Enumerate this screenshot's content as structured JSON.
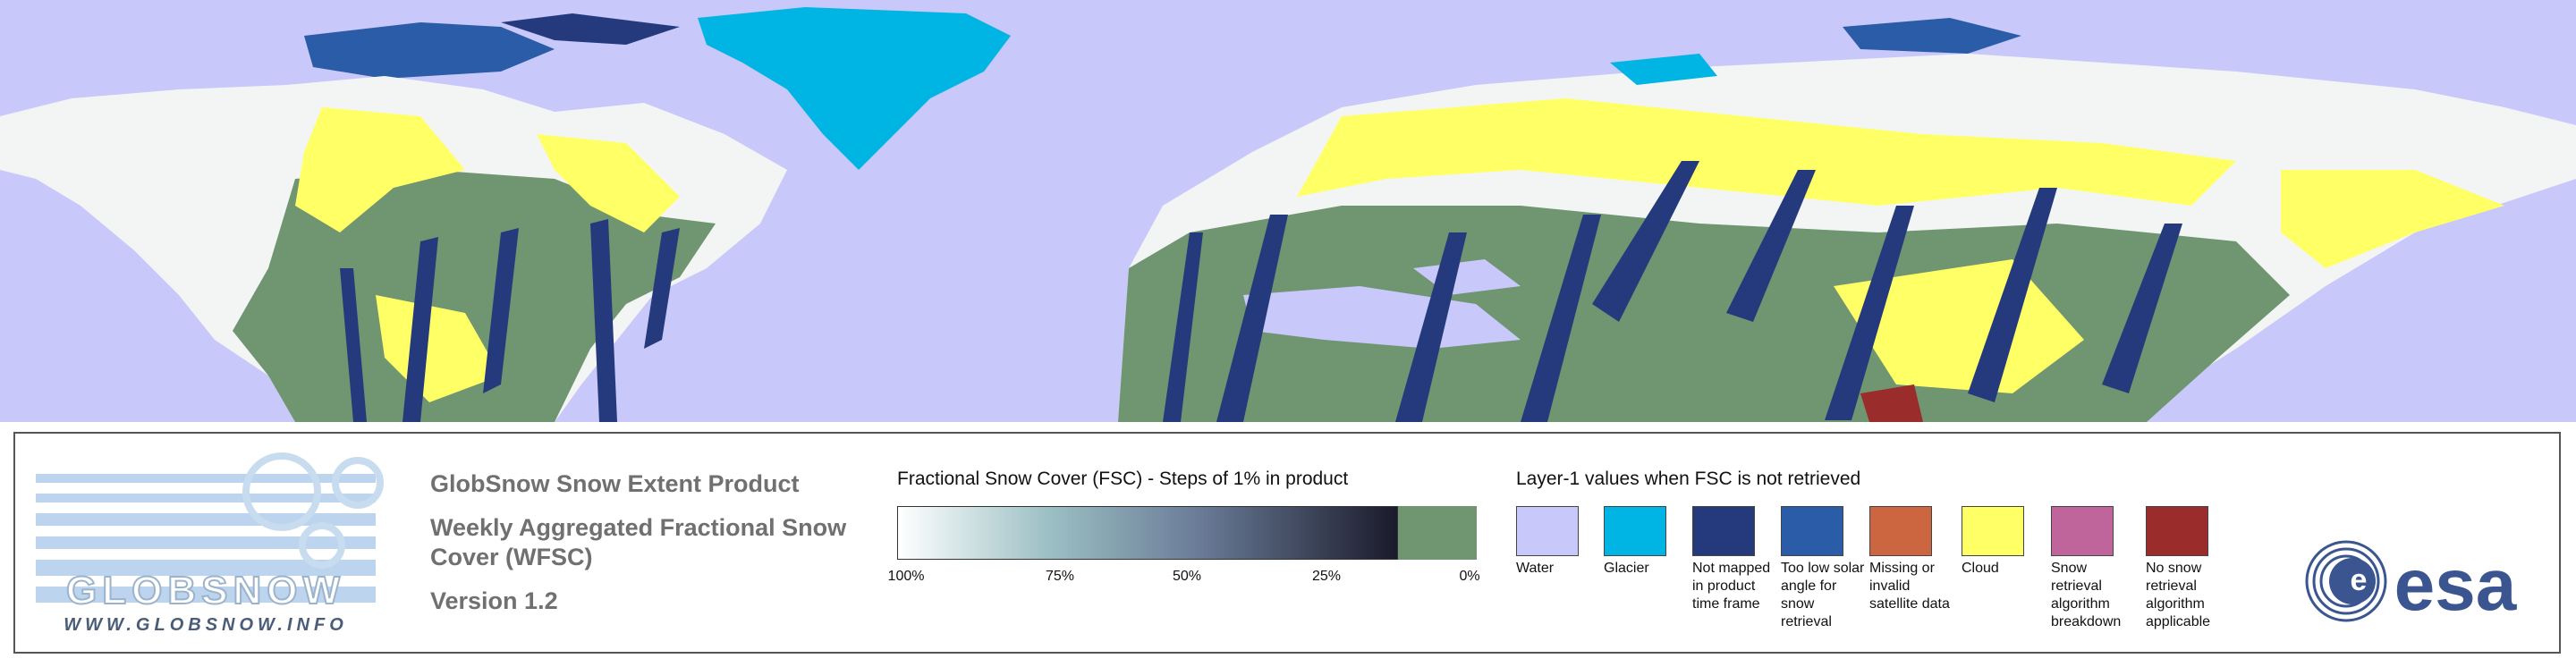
{
  "logo": {
    "name": "GLOBSNOW",
    "url": "WWW.GLOBSNOW.INFO"
  },
  "title": {
    "product": "GlobSnow Snow Extent Product",
    "subtitle": "Weekly Aggregated Fractional Snow Cover (WFSC)",
    "version": "Version 1.2"
  },
  "fsc_legend": {
    "title": "Fractional Snow Cover (FSC) - Steps of 1% in product",
    "ticks": [
      "100%",
      "75%",
      "50%",
      "25%",
      "0%"
    ],
    "no_snow_color": "#6f9670"
  },
  "layer1_legend": {
    "title": "Layer-1 values when FSC is not retrieved",
    "items": [
      {
        "label": "Water",
        "color": "#c9c8fa"
      },
      {
        "label": "Glacier",
        "color": "#00b4e4"
      },
      {
        "label": "Not mapped in product time frame",
        "color": "#253a7c"
      },
      {
        "label": "Too low solar angle for snow retrieval",
        "color": "#2a5ca8"
      },
      {
        "label": "Missing or invalid satellite data",
        "color": "#cc6640"
      },
      {
        "label": "Cloud",
        "color": "#ffff66"
      },
      {
        "label": "Snow retrieval algorithm breakdown",
        "color": "#c0649c"
      },
      {
        "label": "No snow retrieval algorithm applicable",
        "color": "#9a2c2c"
      }
    ]
  },
  "agency": "esa"
}
